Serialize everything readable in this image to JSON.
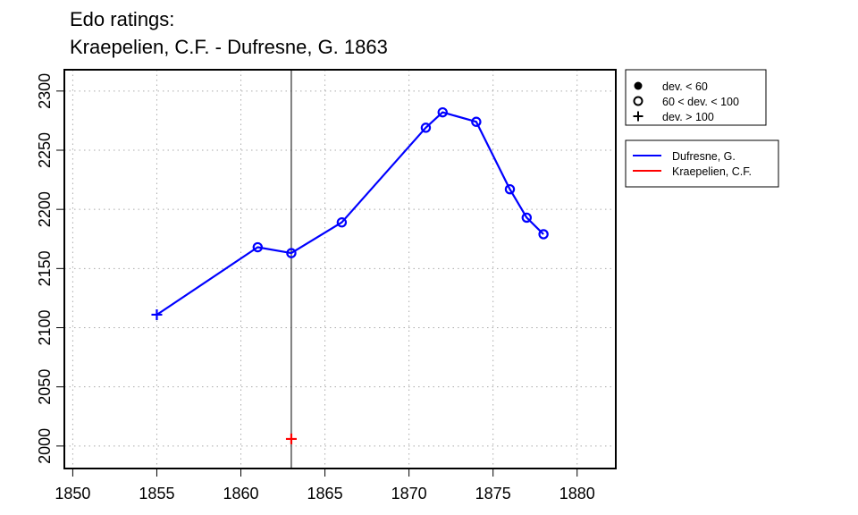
{
  "chart_data": {
    "type": "line",
    "title_line1": "Edo ratings:",
    "title_line2": "Kraepelien, C.F. - Dufresne, G. 1863",
    "xlabel": "",
    "ylabel": "",
    "xlim": [
      1849.5,
      1882.3
    ],
    "ylim": [
      1981,
      2318
    ],
    "x_ticks": [
      1850,
      1855,
      1860,
      1865,
      1870,
      1875,
      1880
    ],
    "y_ticks": [
      2000,
      2050,
      2100,
      2150,
      2200,
      2250,
      2300
    ],
    "x_tick_labels": [
      "1850",
      "1855",
      "1860",
      "1865",
      "1870",
      "1875",
      "1880"
    ],
    "y_tick_labels": [
      "2000",
      "2050",
      "2100",
      "2150",
      "2200",
      "2250",
      "2300"
    ],
    "grid": "dotted",
    "vertical_marker_x": 1863,
    "series": [
      {
        "name": "Dufresne, G.",
        "color": "#0000ff",
        "points": [
          {
            "x": 1855,
            "y": 2111,
            "marker": "plus"
          },
          {
            "x": 1861,
            "y": 2168,
            "marker": "circle"
          },
          {
            "x": 1863,
            "y": 2163,
            "marker": "circle"
          },
          {
            "x": 1866,
            "y": 2189,
            "marker": "circle"
          },
          {
            "x": 1871,
            "y": 2269,
            "marker": "circle"
          },
          {
            "x": 1872,
            "y": 2282,
            "marker": "circle"
          },
          {
            "x": 1874,
            "y": 2274,
            "marker": "circle"
          },
          {
            "x": 1876,
            "y": 2217,
            "marker": "circle"
          },
          {
            "x": 1877,
            "y": 2193,
            "marker": "circle"
          },
          {
            "x": 1878,
            "y": 2179,
            "marker": "circle"
          }
        ]
      },
      {
        "name": "Kraepelien, C.F.",
        "color": "#ff0000",
        "points": [
          {
            "x": 1863,
            "y": 2006,
            "marker": "plus"
          }
        ]
      }
    ],
    "marker_legend": [
      {
        "marker": "dot",
        "label": "dev. < 60"
      },
      {
        "marker": "circle",
        "label": "60 < dev. < 100"
      },
      {
        "marker": "plus",
        "label": "dev. > 100"
      }
    ],
    "legend_placement": "top-right, outside plot"
  }
}
